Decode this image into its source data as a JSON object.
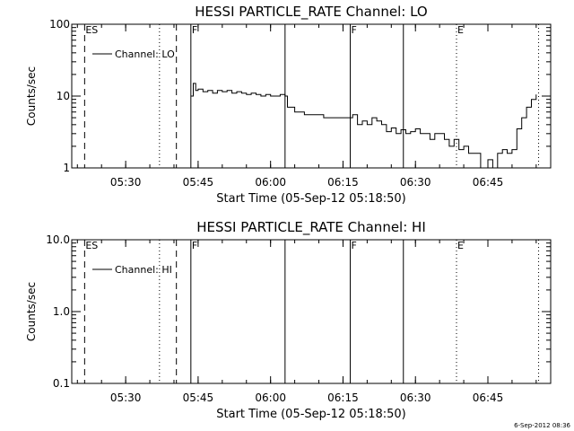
{
  "footer": {
    "timestamp": "6-Sep-2012 08:36"
  },
  "chart_data": [
    {
      "type": "line",
      "title": "HESSI PARTICLE_RATE Channel: LO",
      "xlabel": "Start Time (05-Sep-12 05:18:50)",
      "ylabel": "Counts/sec",
      "y_scale": "log",
      "xlim": [
        "05:18:50",
        "06:58:00"
      ],
      "ylim": [
        1,
        100
      ],
      "yticks": [
        {
          "value": 1,
          "label": "1"
        },
        {
          "value": 10,
          "label": "10"
        },
        {
          "value": 100,
          "label": "100"
        }
      ],
      "xticks": [
        "05:30",
        "05:45",
        "06:00",
        "06:15",
        "06:30",
        "06:45"
      ],
      "legend": {
        "position": "top-left",
        "entries": [
          "Channel: LO"
        ]
      },
      "markers": [
        {
          "time": "05:21:30",
          "style": "dashed",
          "label": "ES"
        },
        {
          "time": "05:37:00",
          "style": "dotted",
          "label": ""
        },
        {
          "time": "05:40:30",
          "style": "dashed",
          "label": ""
        },
        {
          "time": "05:43:30",
          "style": "solid",
          "label": "F"
        },
        {
          "time": "06:03:00",
          "style": "solid",
          "label": ""
        },
        {
          "time": "06:16:30",
          "style": "solid",
          "label": "F"
        },
        {
          "time": "06:27:30",
          "style": "solid",
          "label": ""
        },
        {
          "time": "06:38:30",
          "style": "dotted",
          "label": "E"
        },
        {
          "time": "06:55:30",
          "style": "dotted",
          "label": ""
        }
      ],
      "series": [
        {
          "name": "Channel: LO",
          "x": [
            "05:43:30",
            "05:44:00",
            "05:44:30",
            "05:45:00",
            "05:46:00",
            "05:47:00",
            "05:48:00",
            "05:49:00",
            "05:50:00",
            "05:51:00",
            "05:52:00",
            "05:53:00",
            "05:54:00",
            "05:55:00",
            "05:56:00",
            "05:57:00",
            "05:58:00",
            "05:59:00",
            "06:00:00",
            "06:01:00",
            "06:02:00",
            "06:03:00",
            "06:03:30",
            "06:05:00",
            "06:07:00",
            "06:09:00",
            "06:11:00",
            "06:13:00",
            "06:15:00",
            "06:17:00",
            "06:18:00",
            "06:19:00",
            "06:20:00",
            "06:21:00",
            "06:22:00",
            "06:23:00",
            "06:24:00",
            "06:25:00",
            "06:26:00",
            "06:27:00",
            "06:28:00",
            "06:29:00",
            "06:30:00",
            "06:31:00",
            "06:32:00",
            "06:33:00",
            "06:34:00",
            "06:35:00",
            "06:36:00",
            "06:37:00",
            "06:38:00",
            "06:39:00",
            "06:40:00",
            "06:41:00",
            "06:42:00",
            "06:43:00",
            "06:43:30",
            "06:44:00",
            "06:45:00",
            "06:46:00",
            "06:47:00",
            "06:48:00",
            "06:49:00",
            "06:50:00",
            "06:51:00",
            "06:52:00",
            "06:53:00",
            "06:54:00",
            "06:55:00"
          ],
          "y": [
            10,
            15,
            12,
            12.5,
            11.5,
            12,
            11,
            12,
            11.5,
            12,
            11,
            11.5,
            11,
            10.5,
            11,
            10.5,
            10,
            10.5,
            10,
            10,
            10.5,
            10,
            7,
            6,
            5.5,
            5.5,
            5,
            5,
            5,
            5.5,
            4,
            4.5,
            4,
            5,
            4.5,
            4,
            3.2,
            3.6,
            3,
            3.4,
            3,
            3.2,
            3.5,
            3,
            3,
            2.5,
            3,
            3,
            2.5,
            2,
            2.5,
            1.8,
            2,
            1.6,
            1.6,
            1.6,
            1,
            1,
            1.3,
            1,
            1.6,
            1.8,
            1.6,
            1.8,
            3.5,
            5,
            7,
            9,
            10.5
          ]
        }
      ]
    },
    {
      "type": "line",
      "title": "HESSI PARTICLE_RATE Channel: HI",
      "xlabel": "Start Time (05-Sep-12 05:18:50)",
      "ylabel": "Counts/sec",
      "y_scale": "log",
      "xlim": [
        "05:18:50",
        "06:58:00"
      ],
      "ylim": [
        0.1,
        10
      ],
      "yticks": [
        {
          "value": 0.1,
          "label": "0.1"
        },
        {
          "value": 1,
          "label": "1.0"
        },
        {
          "value": 10,
          "label": "10.0"
        }
      ],
      "xticks": [
        "05:30",
        "05:45",
        "06:00",
        "06:15",
        "06:30",
        "06:45"
      ],
      "legend": {
        "position": "top-left",
        "entries": [
          "Channel: HI"
        ]
      },
      "markers": [
        {
          "time": "05:21:30",
          "style": "dashed",
          "label": "ES"
        },
        {
          "time": "05:37:00",
          "style": "dotted",
          "label": ""
        },
        {
          "time": "05:40:30",
          "style": "dashed",
          "label": ""
        },
        {
          "time": "05:43:30",
          "style": "solid",
          "label": "F"
        },
        {
          "time": "06:03:00",
          "style": "solid",
          "label": ""
        },
        {
          "time": "06:16:30",
          "style": "solid",
          "label": "F"
        },
        {
          "time": "06:27:30",
          "style": "solid",
          "label": ""
        },
        {
          "time": "06:38:30",
          "style": "dotted",
          "label": "E"
        },
        {
          "time": "06:55:30",
          "style": "dotted",
          "label": ""
        }
      ],
      "series": [
        {
          "name": "Channel: HI",
          "x": [],
          "y": []
        }
      ]
    }
  ]
}
